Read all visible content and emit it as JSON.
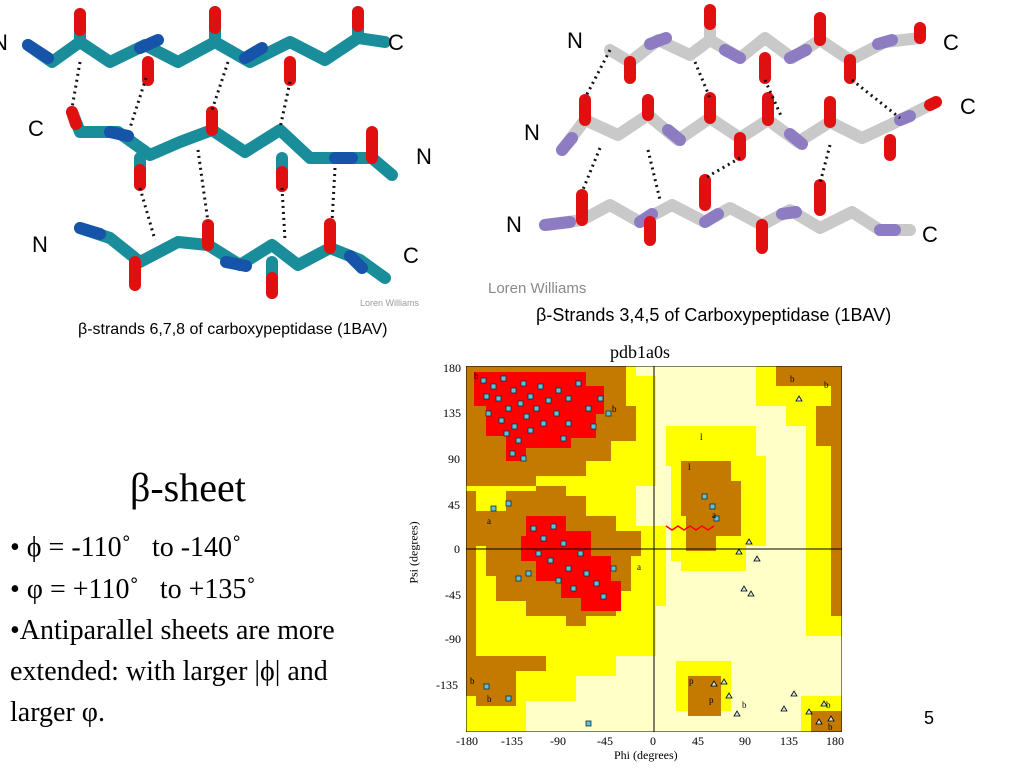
{
  "left_figure": {
    "labels": [
      "N",
      "C",
      "C",
      "N",
      "N",
      "C"
    ],
    "credit": "Loren Williams",
    "caption": "β-strands 6,7,8 of carboxypeptidase (1BAV)"
  },
  "right_figure": {
    "labels": [
      "N",
      "C",
      "C",
      "N",
      "N",
      "C"
    ],
    "credit": "Loren Williams",
    "caption": "β-Strands 3,4,5 of Carboxypeptidase (1BAV)"
  },
  "ramachandran": {
    "title": "pdb1a0s",
    "xlabel": "Phi (degrees)",
    "ylabel": "Psi (degrees)",
    "xticks": [
      "-180",
      "-135",
      "-90",
      "-45",
      "0",
      "45",
      "90",
      "135",
      "180"
    ],
    "yticks": [
      "180",
      "135",
      "90",
      "45",
      "0",
      "-45",
      "-90",
      "-135"
    ],
    "region_labels": [
      "b",
      "b",
      "b",
      "l",
      "l",
      "a",
      "a",
      "p",
      "p",
      "b",
      "b",
      "b",
      "a",
      "b",
      "b",
      "b"
    ],
    "colors": {
      "core": "#ff0000",
      "allowed": "#c47a00",
      "generous": "#ffff00",
      "disallowed": "#ffffc8"
    }
  },
  "slide": {
    "title": "β-sheet",
    "bullets": [
      "• ϕ = -110˚   to -140˚",
      "• φ = +110˚   to +135˚",
      "•Antiparallel sheets are more",
      "extended: with larger |ϕ| and",
      "larger φ."
    ],
    "page_number": "5"
  }
}
